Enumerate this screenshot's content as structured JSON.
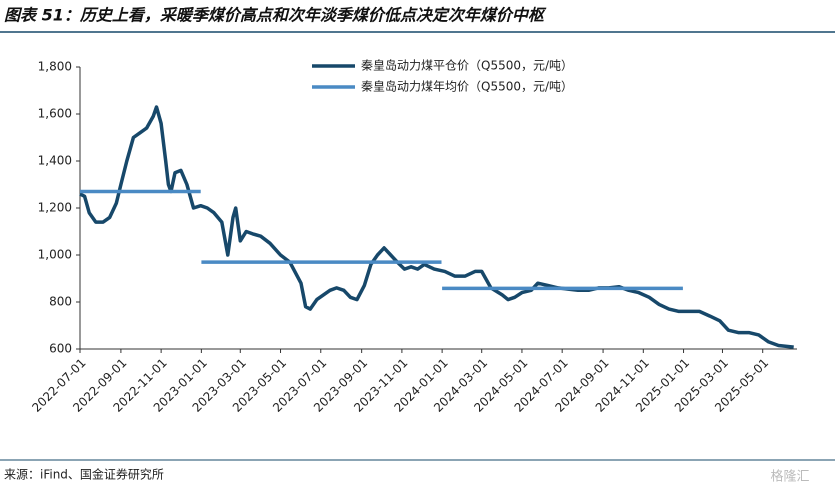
{
  "chart_data": {
    "type": "line",
    "title": "图表 51：历史上看，采暖季煤价高点和次年淡季煤价低点决定次年煤价中枢",
    "source": "来源：iFind、国金证券研究所",
    "watermark": "格隆汇",
    "x": [
      "2022-07-01",
      "2022-07-08",
      "2022-07-15",
      "2022-07-25",
      "2022-08-05",
      "2022-08-15",
      "2022-08-25",
      "2022-09-01",
      "2022-09-10",
      "2022-09-20",
      "2022-09-30",
      "2022-10-10",
      "2022-10-20",
      "2022-10-25",
      "2022-11-01",
      "2022-11-08",
      "2022-11-12",
      "2022-11-16",
      "2022-11-22",
      "2022-12-01",
      "2022-12-10",
      "2022-12-20",
      "2022-12-31",
      "2023-01-10",
      "2023-01-20",
      "2023-02-01",
      "2023-02-10",
      "2023-02-18",
      "2023-02-22",
      "2023-03-01",
      "2023-03-10",
      "2023-03-20",
      "2023-04-01",
      "2023-04-15",
      "2023-05-01",
      "2023-05-15",
      "2023-06-01",
      "2023-06-08",
      "2023-06-15",
      "2023-06-25",
      "2023-07-05",
      "2023-07-15",
      "2023-07-25",
      "2023-08-05",
      "2023-08-15",
      "2023-08-25",
      "2023-09-05",
      "2023-09-15",
      "2023-09-25",
      "2023-10-05",
      "2023-10-15",
      "2023-10-25",
      "2023-11-05",
      "2023-11-15",
      "2023-11-25",
      "2023-12-05",
      "2023-12-20",
      "2024-01-05",
      "2024-01-20",
      "2024-02-05",
      "2024-02-20",
      "2024-03-01",
      "2024-03-15",
      "2024-04-01",
      "2024-04-10",
      "2024-04-20",
      "2024-05-01",
      "2024-05-15",
      "2024-05-25",
      "2024-06-10",
      "2024-06-25",
      "2024-07-10",
      "2024-07-25",
      "2024-08-10",
      "2024-08-25",
      "2024-09-10",
      "2024-09-25",
      "2024-10-10",
      "2024-10-25",
      "2024-11-10",
      "2024-11-25",
      "2024-12-10",
      "2024-12-25",
      "2025-01-10",
      "2025-01-25",
      "2025-02-10",
      "2025-02-25",
      "2025-03-10",
      "2025-03-25",
      "2025-04-10",
      "2025-04-25",
      "2025-05-10",
      "2025-05-25",
      "2025-06-10",
      "2025-06-17"
    ],
    "series": [
      {
        "name": "秦皇岛动力煤平仓价（Q5500，元/吨）",
        "color": "#17486a",
        "width": 3.5,
        "values": [
          1260,
          1250,
          1180,
          1140,
          1140,
          1160,
          1220,
          1300,
          1400,
          1500,
          1520,
          1540,
          1590,
          1630,
          1560,
          1400,
          1300,
          1270,
          1350,
          1360,
          1300,
          1200,
          1210,
          1200,
          1180,
          1140,
          1000,
          1160,
          1200,
          1060,
          1100,
          1090,
          1080,
          1050,
          1000,
          970,
          880,
          780,
          770,
          810,
          830,
          850,
          860,
          850,
          820,
          810,
          870,
          960,
          1000,
          1030,
          1000,
          970,
          940,
          950,
          940,
          960,
          940,
          930,
          910,
          910,
          930,
          930,
          860,
          830,
          810,
          820,
          840,
          850,
          880,
          870,
          860,
          855,
          850,
          850,
          860,
          860,
          865,
          850,
          840,
          820,
          790,
          770,
          760,
          760,
          760,
          740,
          720,
          680,
          670,
          670,
          660,
          630,
          615,
          610,
          608
        ]
      },
      {
        "name": "秦皇岛动力煤年均价（Q5500，元/吨）",
        "color": "#4a8ac4",
        "width": 3.5,
        "x": [
          "2022-07-01",
          "2022-12-31",
          "2023-01-01",
          "2023-01-01",
          "2023-12-31",
          "2024-01-01",
          "2024-01-01",
          "2024-12-31"
        ],
        "values": [
          1270,
          1270,
          null,
          970,
          970,
          null,
          858,
          858
        ]
      }
    ],
    "xlim": [
      "2022-07-01",
      "2025-06-22"
    ],
    "xticks": [
      "2022-07-01",
      "2022-09-01",
      "2022-11-01",
      "2023-01-01",
      "2023-03-01",
      "2023-05-01",
      "2023-07-01",
      "2023-09-01",
      "2023-11-01",
      "2024-01-01",
      "2024-03-01",
      "2024-05-01",
      "2024-07-01",
      "2024-09-01",
      "2024-11-01",
      "2025-01-01",
      "2025-03-01",
      "2025-05-01"
    ],
    "ylim": [
      600,
      1800
    ],
    "yticks": [
      600,
      800,
      {
        "value": 1000,
        "label": "1,000"
      },
      {
        "value": 1200,
        "label": "1,200"
      },
      {
        "value": 1400,
        "label": "1,400"
      },
      {
        "value": 1600,
        "label": "1,600"
      },
      {
        "value": 1800,
        "label": "1,800"
      }
    ],
    "grid": false,
    "legend": "top"
  }
}
